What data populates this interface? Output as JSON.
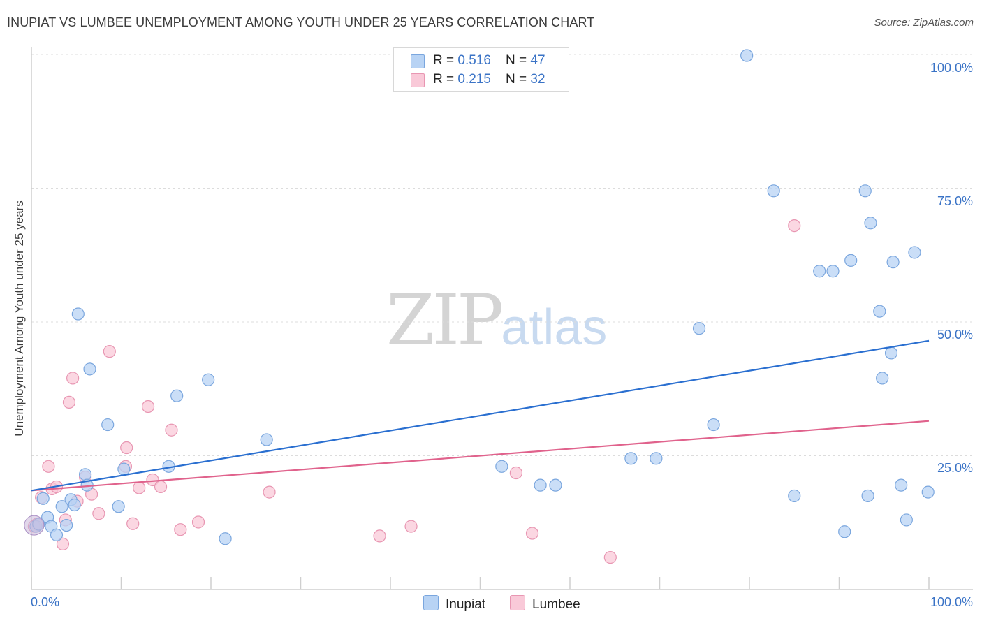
{
  "title": "INUPIAT VS LUMBEE UNEMPLOYMENT AMONG YOUTH UNDER 25 YEARS CORRELATION CHART",
  "source": "Source: ZipAtlas.com",
  "watermark": {
    "zip": "ZIP",
    "atlas": "atlas"
  },
  "legend": {
    "rows": [
      {
        "r_label": "R = ",
        "r_value": "0.516",
        "n_label": "N = ",
        "n_value": "47"
      },
      {
        "r_label": "R = ",
        "r_value": "0.215",
        "n_label": "N = ",
        "n_value": "32"
      }
    ],
    "bottom": [
      "Inupiat",
      "Lumbee"
    ]
  },
  "colors": {
    "inupiat_fill": "#b8d3f4",
    "inupiat_edge": "#7aa6de",
    "inupiat_line": "#2a6fd0",
    "lumbee_fill": "#f9c9d8",
    "lumbee_edge": "#e896b2",
    "lumbee_line": "#e0628c",
    "tick_text": "#3a73c6"
  },
  "chart_data": {
    "type": "scatter",
    "title": "INUPIAT VS LUMBEE UNEMPLOYMENT AMONG YOUTH UNDER 25 YEARS CORRELATION CHART",
    "xlabel": "",
    "ylabel": "Unemployment Among Youth under 25 years",
    "xlim": [
      0,
      100
    ],
    "ylim": [
      0,
      100
    ],
    "x_tick_labels": [
      "0.0%",
      "100.0%"
    ],
    "y_tick_labels": [
      "25.0%",
      "50.0%",
      "75.0%",
      "100.0%"
    ],
    "y_ticks": [
      25,
      50,
      75,
      100
    ],
    "legend_position": "top-center",
    "series": [
      {
        "name": "Inupiat",
        "r": 0.516,
        "n": 47,
        "trend": {
          "x": [
            0,
            100
          ],
          "y": [
            18.5,
            46.5
          ]
        },
        "points": [
          {
            "x": 0.5,
            "y": 11.8
          },
          {
            "x": 1.3,
            "y": 17.0
          },
          {
            "x": 1.8,
            "y": 13.5
          },
          {
            "x": 2.2,
            "y": 11.8
          },
          {
            "x": 2.8,
            "y": 10.2
          },
          {
            "x": 3.4,
            "y": 15.5
          },
          {
            "x": 3.9,
            "y": 12.0
          },
          {
            "x": 4.4,
            "y": 16.8
          },
          {
            "x": 4.8,
            "y": 15.8
          },
          {
            "x": 5.2,
            "y": 51.5
          },
          {
            "x": 6.0,
            "y": 21.5
          },
          {
            "x": 6.2,
            "y": 19.5
          },
          {
            "x": 6.5,
            "y": 41.2
          },
          {
            "x": 8.5,
            "y": 30.8
          },
          {
            "x": 9.7,
            "y": 15.5
          },
          {
            "x": 10.3,
            "y": 22.5
          },
          {
            "x": 15.3,
            "y": 23.0
          },
          {
            "x": 16.2,
            "y": 36.2
          },
          {
            "x": 19.7,
            "y": 39.2
          },
          {
            "x": 21.6,
            "y": 9.5
          },
          {
            "x": 26.2,
            "y": 28.0
          },
          {
            "x": 52.4,
            "y": 23.0
          },
          {
            "x": 56.7,
            "y": 19.5
          },
          {
            "x": 58.4,
            "y": 19.5
          },
          {
            "x": 66.8,
            "y": 24.5
          },
          {
            "x": 69.6,
            "y": 24.5
          },
          {
            "x": 74.4,
            "y": 48.8
          },
          {
            "x": 76.0,
            "y": 30.8
          },
          {
            "x": 79.7,
            "y": 99.8
          },
          {
            "x": 82.7,
            "y": 74.5
          },
          {
            "x": 85.0,
            "y": 17.5
          },
          {
            "x": 87.8,
            "y": 59.5
          },
          {
            "x": 89.3,
            "y": 59.5
          },
          {
            "x": 90.6,
            "y": 10.8
          },
          {
            "x": 91.3,
            "y": 61.5
          },
          {
            "x": 92.9,
            "y": 74.5
          },
          {
            "x": 93.2,
            "y": 17.5
          },
          {
            "x": 93.5,
            "y": 68.5
          },
          {
            "x": 94.5,
            "y": 52.0
          },
          {
            "x": 94.8,
            "y": 39.5
          },
          {
            "x": 95.8,
            "y": 44.2
          },
          {
            "x": 96.0,
            "y": 61.2
          },
          {
            "x": 96.9,
            "y": 19.5
          },
          {
            "x": 97.5,
            "y": 13.0
          },
          {
            "x": 98.4,
            "y": 63.0
          },
          {
            "x": 99.9,
            "y": 18.2
          },
          {
            "x": 0.8,
            "y": 12.2
          }
        ]
      },
      {
        "name": "Lumbee",
        "r": 0.215,
        "n": 32,
        "trend": {
          "x": [
            0,
            100
          ],
          "y": [
            18.5,
            31.5
          ]
        },
        "points": [
          {
            "x": 0.6,
            "y": 12.2
          },
          {
            "x": 1.1,
            "y": 17.2
          },
          {
            "x": 1.9,
            "y": 23.0
          },
          {
            "x": 2.3,
            "y": 18.8
          },
          {
            "x": 2.8,
            "y": 19.2
          },
          {
            "x": 3.5,
            "y": 8.5
          },
          {
            "x": 3.8,
            "y": 13.0
          },
          {
            "x": 4.2,
            "y": 35.0
          },
          {
            "x": 4.6,
            "y": 39.5
          },
          {
            "x": 5.1,
            "y": 16.5
          },
          {
            "x": 6.0,
            "y": 21.0
          },
          {
            "x": 6.7,
            "y": 17.8
          },
          {
            "x": 7.5,
            "y": 14.2
          },
          {
            "x": 8.7,
            "y": 44.5
          },
          {
            "x": 10.5,
            "y": 23.0
          },
          {
            "x": 10.6,
            "y": 26.5
          },
          {
            "x": 11.3,
            "y": 12.3
          },
          {
            "x": 12.0,
            "y": 19.0
          },
          {
            "x": 13.0,
            "y": 34.2
          },
          {
            "x": 13.5,
            "y": 20.5
          },
          {
            "x": 14.4,
            "y": 19.2
          },
          {
            "x": 15.6,
            "y": 29.8
          },
          {
            "x": 16.6,
            "y": 11.2
          },
          {
            "x": 18.6,
            "y": 12.6
          },
          {
            "x": 26.5,
            "y": 18.2
          },
          {
            "x": 38.8,
            "y": 10.0
          },
          {
            "x": 42.3,
            "y": 11.8
          },
          {
            "x": 54.0,
            "y": 21.8
          },
          {
            "x": 55.8,
            "y": 10.5
          },
          {
            "x": 64.5,
            "y": 6.0
          },
          {
            "x": 85.0,
            "y": 68.0
          },
          {
            "x": 0.3,
            "y": 11.8
          }
        ]
      }
    ]
  }
}
